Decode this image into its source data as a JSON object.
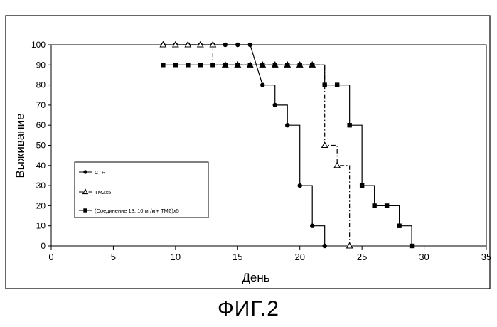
{
  "figure": {
    "caption": "ФИГ.2"
  },
  "chart_data": {
    "type": "line",
    "step": true,
    "xlabel": "День",
    "ylabel": "Выживание",
    "xlim": [
      0,
      35
    ],
    "ylim": [
      0,
      100
    ],
    "xticks": [
      0,
      5,
      10,
      15,
      20,
      25,
      30,
      35
    ],
    "yticks": [
      0,
      10,
      20,
      30,
      40,
      50,
      60,
      70,
      80,
      90,
      100
    ],
    "grid": false,
    "legend_position": "middle-left",
    "series": [
      {
        "name": "CTR",
        "marker": "circle",
        "line": "solid",
        "color": "#000000",
        "x": [
          9,
          10,
          11,
          12,
          13,
          14,
          15,
          16,
          17,
          18,
          19,
          20,
          21,
          22
        ],
        "y": [
          100,
          100,
          100,
          100,
          100,
          100,
          100,
          100,
          80,
          70,
          60,
          30,
          10,
          0
        ],
        "points": [
          [
            9,
            100
          ],
          [
            10,
            100
          ],
          [
            11,
            100
          ],
          [
            12,
            100
          ],
          [
            13,
            100
          ],
          [
            14,
            100
          ],
          [
            15,
            100
          ],
          [
            16,
            100
          ],
          [
            17,
            80
          ],
          [
            18,
            80
          ],
          [
            18,
            70
          ],
          [
            19,
            70
          ],
          [
            19,
            60
          ],
          [
            20,
            60
          ],
          [
            20,
            30
          ],
          [
            21,
            30
          ],
          [
            21,
            10
          ],
          [
            22,
            10
          ],
          [
            22,
            0
          ]
        ]
      },
      {
        "name": "TMZx5",
        "marker": "triangle",
        "line": "dash-dot",
        "color": "#000000",
        "x": [
          9,
          10,
          11,
          12,
          13,
          14,
          15,
          16,
          17,
          18,
          19,
          20,
          21,
          22,
          23,
          24
        ],
        "y": [
          100,
          100,
          100,
          100,
          100,
          90,
          90,
          90,
          90,
          90,
          90,
          90,
          90,
          50,
          40,
          0
        ],
        "points": [
          [
            9,
            100
          ],
          [
            10,
            100
          ],
          [
            11,
            100
          ],
          [
            12,
            100
          ],
          [
            13,
            100
          ],
          [
            13,
            90
          ],
          [
            14,
            90
          ],
          [
            15,
            90
          ],
          [
            16,
            90
          ],
          [
            17,
            90
          ],
          [
            18,
            90
          ],
          [
            19,
            90
          ],
          [
            20,
            90
          ],
          [
            21,
            90
          ],
          [
            22,
            90
          ],
          [
            22,
            50
          ],
          [
            23,
            50
          ],
          [
            23,
            40
          ],
          [
            24,
            40
          ],
          [
            24,
            0
          ]
        ]
      },
      {
        "name": "(Соединение 13, 10 мг/кг+ TMZ)x5",
        "marker": "square",
        "line": "solid",
        "color": "#000000",
        "x": [
          9,
          10,
          11,
          12,
          13,
          14,
          15,
          16,
          17,
          18,
          19,
          20,
          21,
          22,
          23,
          24,
          25,
          26,
          27,
          28,
          29
        ],
        "y": [
          90,
          90,
          90,
          90,
          90,
          90,
          90,
          90,
          90,
          90,
          90,
          90,
          90,
          80,
          80,
          60,
          30,
          20,
          20,
          10,
          0
        ],
        "points": [
          [
            9,
            90
          ],
          [
            10,
            90
          ],
          [
            11,
            90
          ],
          [
            12,
            90
          ],
          [
            13,
            90
          ],
          [
            14,
            90
          ],
          [
            15,
            90
          ],
          [
            16,
            90
          ],
          [
            17,
            90
          ],
          [
            18,
            90
          ],
          [
            19,
            90
          ],
          [
            20,
            90
          ],
          [
            21,
            90
          ],
          [
            22,
            90
          ],
          [
            22,
            80
          ],
          [
            23,
            80
          ],
          [
            24,
            80
          ],
          [
            24,
            60
          ],
          [
            25,
            60
          ],
          [
            25,
            30
          ],
          [
            26,
            30
          ],
          [
            26,
            20
          ],
          [
            27,
            20
          ],
          [
            28,
            20
          ],
          [
            28,
            10
          ],
          [
            29,
            10
          ],
          [
            29,
            0
          ]
        ]
      }
    ]
  }
}
